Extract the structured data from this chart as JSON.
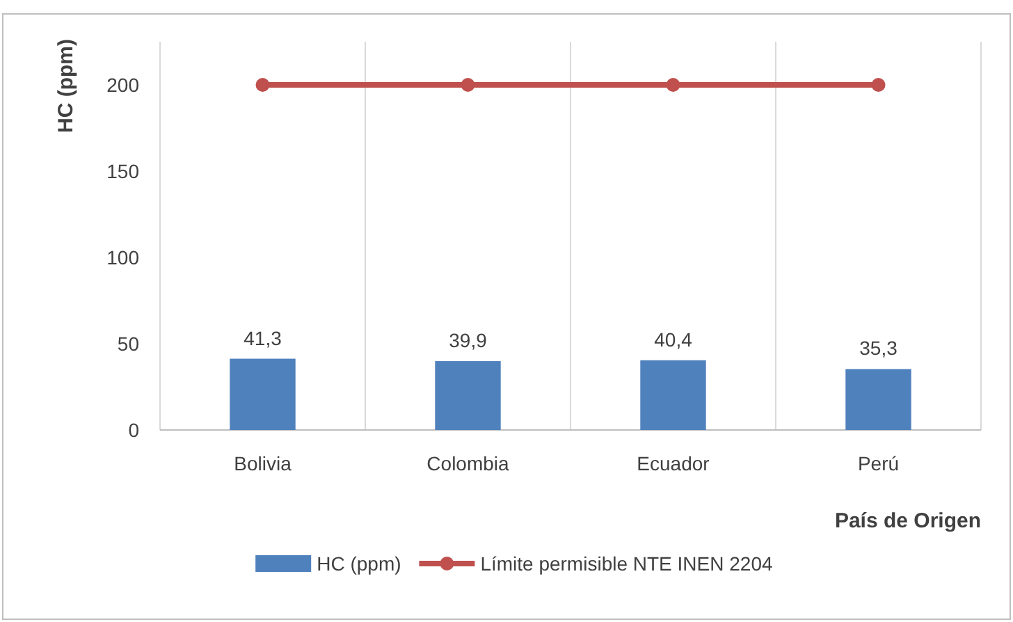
{
  "chart_data": {
    "type": "bar",
    "xlabel": "País de Origen",
    "ylabel": "HC (ppm)",
    "categories": [
      "Bolivia",
      "Colombia",
      "Ecuador",
      "Perú"
    ],
    "series": [
      {
        "name": "HC (ppm)",
        "color": "#4f81bd",
        "values": [
          41.3,
          39.9,
          40.4,
          35.3
        ],
        "value_labels": [
          "41,3",
          "39,9",
          "40,4",
          "35,3"
        ]
      },
      {
        "name": "Límite permisible NTE INEN 2204",
        "type": "line",
        "color": "#c0504d",
        "values": [
          200,
          200,
          200,
          200
        ],
        "marker": "circle"
      }
    ],
    "ylim": [
      0,
      225
    ],
    "yticks": [
      0,
      50,
      100,
      150,
      200
    ],
    "grid": "x",
    "legend": "bottom"
  }
}
